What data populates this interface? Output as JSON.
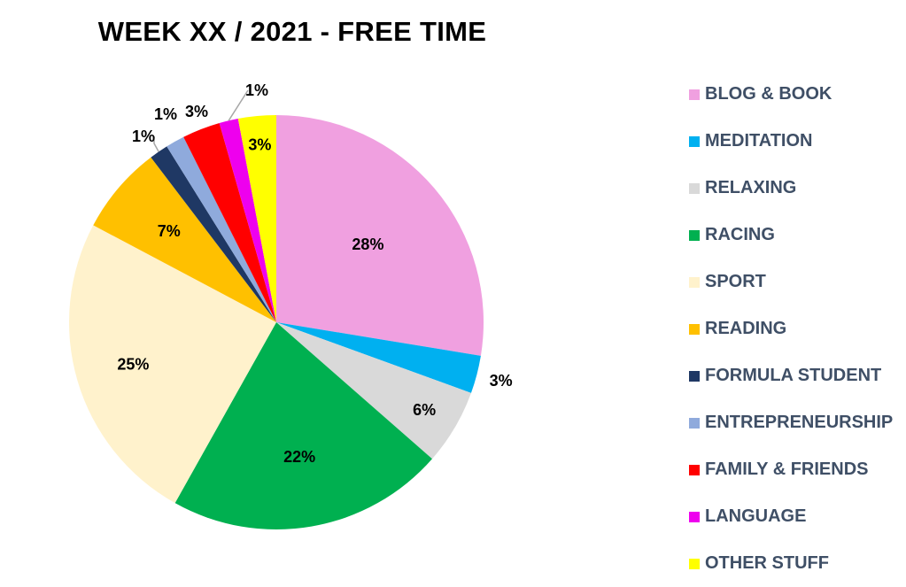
{
  "chart_data": {
    "type": "pie",
    "title": "WEEK XX / 2021 - FREE TIME",
    "slices": [
      {
        "name": "BLOG & BOOK",
        "value": 28,
        "label": "28%",
        "color": "#f0a0e0"
      },
      {
        "name": "MEDITATION",
        "value": 3,
        "label": "3%",
        "color": "#00b0f0"
      },
      {
        "name": "RELAXING",
        "value": 6,
        "label": "6%",
        "color": "#d9d9d9"
      },
      {
        "name": "RACING",
        "value": 22,
        "label": "22%",
        "color": "#00b050"
      },
      {
        "name": "SPORT",
        "value": 25,
        "label": "25%",
        "color": "#fff2cc"
      },
      {
        "name": "READING",
        "value": 7,
        "label": "7%",
        "color": "#ffc000"
      },
      {
        "name": "FORMULA STUDENT",
        "value": 1.5,
        "label": "1%",
        "color": "#1f3864"
      },
      {
        "name": "ENTREPRENEURSHIP",
        "value": 1.5,
        "label": "1%",
        "color": "#8faadc"
      },
      {
        "name": "FAMILY & FRIENDS",
        "value": 3,
        "label": "3%",
        "color": "#ff0000"
      },
      {
        "name": "LANGUAGE",
        "value": 1.5,
        "label": "1%",
        "color": "#ee00ee"
      },
      {
        "name": "OTHER STUFF",
        "value": 3,
        "label": "3%",
        "color": "#ffff00"
      }
    ],
    "legend_position": "right"
  }
}
